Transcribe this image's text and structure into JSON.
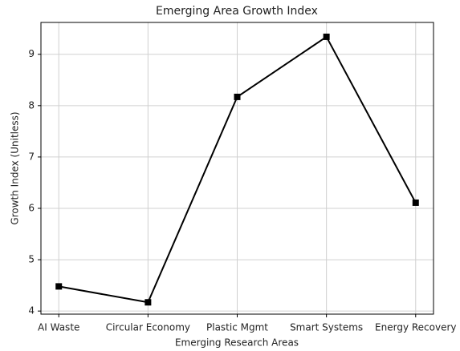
{
  "chart_data": {
    "type": "line",
    "title": "Emerging Area Growth Index",
    "x_label": "Emerging Research Areas",
    "y_label": "Growth Index (Unitless)",
    "categories": [
      "AI Waste",
      "Circular Economy",
      "Plastic Mgmt",
      "Smart Systems",
      "Energy Recovery"
    ],
    "series": [
      {
        "name": "Growth Index",
        "color": "#000000",
        "values": [
          4.48,
          4.17,
          8.17,
          9.34,
          6.11
        ]
      }
    ],
    "ylim": [
      3.94,
      9.62
    ],
    "yticks": [
      4,
      5,
      6,
      7,
      8,
      9
    ],
    "grid": true,
    "marker": "square"
  }
}
